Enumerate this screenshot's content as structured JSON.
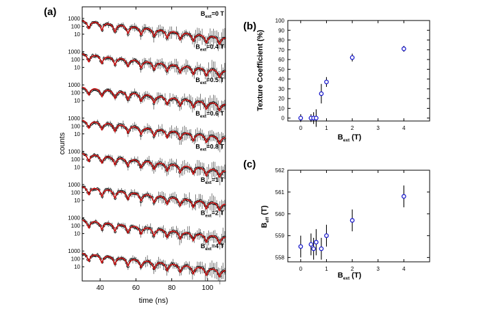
{
  "chart_data": [
    {
      "panel": "(a)",
      "type": "line",
      "xlabel": "time (ns)",
      "ylabel": "counts",
      "xlim": [
        30,
        110
      ],
      "x_ticks": [
        "40",
        "60",
        "80",
        "100"
      ],
      "y_ticks": [
        "1000",
        "100",
        "10"
      ],
      "y_scale": "log",
      "stack_labels": [
        {
          "prefix": "B",
          "sub": "ext",
          "suffix": "=0 T"
        },
        {
          "prefix": "B",
          "sub": "ext",
          "suffix": "=0.4 T"
        },
        {
          "prefix": "B",
          "sub": "ext",
          "suffix": "=0.5 T"
        },
        {
          "prefix": "B",
          "sub": "ext",
          "suffix": "=0.6 T"
        },
        {
          "prefix": "B",
          "sub": "ext",
          "suffix": "=0.8 T"
        },
        {
          "prefix": "B",
          "sub": "ext",
          "suffix": "=1 T"
        },
        {
          "prefix": "B",
          "sub": "ext",
          "suffix": "=2 T"
        },
        {
          "prefix": "B",
          "sub": "ext",
          "suffix": "=4 T"
        }
      ],
      "beat_period_ns": 7.3,
      "decay_decades": 2.2,
      "start_counts": 500,
      "colors": {
        "fit": "#cc1111",
        "data": "#000000"
      }
    },
    {
      "panel": "(b)",
      "type": "scatter",
      "xlabel_prefix": "B",
      "xlabel_sub": "ext",
      "xlabel_suffix": " (T)",
      "ylabel": "Texture Coefficient (%)",
      "xlim": [
        -0.5,
        5.0
      ],
      "ylim": [
        -3,
        100
      ],
      "x_ticks": [
        0,
        1,
        2,
        3,
        4
      ],
      "y_ticks": [
        0,
        10,
        20,
        30,
        40,
        50,
        60,
        70,
        80,
        90,
        100
      ],
      "points": [
        {
          "x": 0.0,
          "y": 0,
          "err": 4
        },
        {
          "x": 0.4,
          "y": 0,
          "err": 4
        },
        {
          "x": 0.5,
          "y": 0,
          "err": 6
        },
        {
          "x": 0.6,
          "y": 0,
          "err": 9
        },
        {
          "x": 0.8,
          "y": 25,
          "err": 10
        },
        {
          "x": 1.0,
          "y": 37,
          "err": 5
        },
        {
          "x": 2.0,
          "y": 62,
          "err": 4
        },
        {
          "x": 4.0,
          "y": 71,
          "err": 3
        }
      ],
      "colors": {
        "marker": "#1a1acc",
        "error": "#000000"
      }
    },
    {
      "panel": "(c)",
      "type": "scatter",
      "xlabel_prefix": "B",
      "xlabel_sub": "ext",
      "xlabel_suffix": " (T)",
      "ylabel_prefix": "B",
      "ylabel_sub": "eff",
      "ylabel_suffix": " (T)",
      "xlim": [
        -0.5,
        5.0
      ],
      "ylim": [
        557.8,
        562.0
      ],
      "x_ticks": [
        0,
        1,
        2,
        3,
        4
      ],
      "y_ticks": [
        558,
        559,
        560,
        561,
        562
      ],
      "points": [
        {
          "x": 0.0,
          "y": 558.5,
          "err": 0.5
        },
        {
          "x": 0.4,
          "y": 558.6,
          "err": 0.5
        },
        {
          "x": 0.5,
          "y": 558.4,
          "err": 0.5
        },
        {
          "x": 0.6,
          "y": 558.7,
          "err": 0.6
        },
        {
          "x": 0.8,
          "y": 558.4,
          "err": 0.5
        },
        {
          "x": 1.0,
          "y": 559.0,
          "err": 0.5
        },
        {
          "x": 2.0,
          "y": 559.7,
          "err": 0.5
        },
        {
          "x": 4.0,
          "y": 560.8,
          "err": 0.5
        }
      ],
      "colors": {
        "marker": "#1a1acc",
        "error": "#000000"
      }
    }
  ]
}
